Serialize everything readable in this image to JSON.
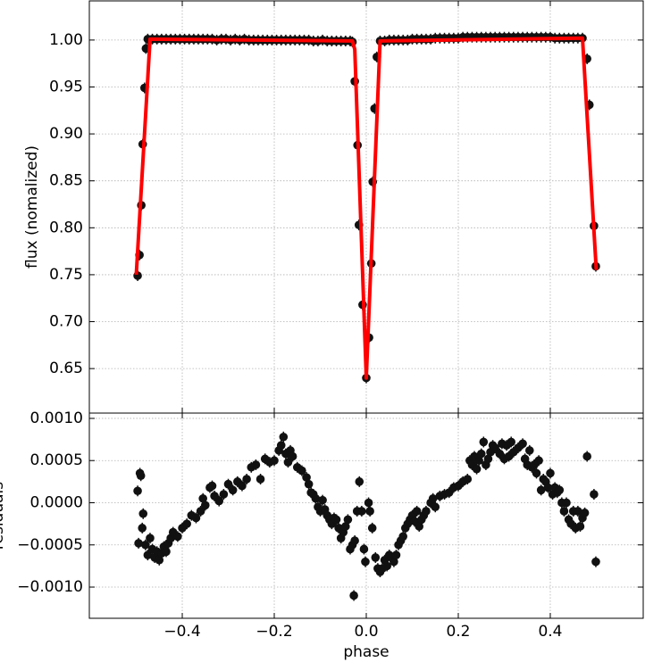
{
  "chart_data": [
    {
      "type": "scatter",
      "ylabel": "flux  (nomalized)",
      "grid": true,
      "color": "#111111",
      "xlim": [
        -0.602,
        0.602
      ],
      "ylim": [
        0.6026,
        1.0417
      ],
      "yticks": [
        0.65,
        {
          "value": 0.7,
          "label": "0.70"
        },
        0.75,
        {
          "value": 0.8,
          "label": "0.80"
        },
        0.85,
        {
          "value": 0.9,
          "label": "0.90"
        },
        0.95,
        {
          "value": 1.0,
          "label": "1.00"
        }
      ],
      "x": [
        -0.497,
        -0.493,
        -0.489,
        -0.486,
        -0.482,
        -0.479,
        -0.475,
        -0.465,
        -0.455,
        -0.445,
        -0.435,
        -0.425,
        -0.415,
        -0.405,
        -0.395,
        -0.385,
        -0.375,
        -0.365,
        -0.355,
        -0.345,
        -0.335,
        -0.325,
        -0.315,
        -0.305,
        -0.295,
        -0.285,
        -0.275,
        -0.265,
        -0.255,
        -0.245,
        -0.235,
        -0.225,
        -0.215,
        -0.205,
        -0.195,
        -0.185,
        -0.175,
        -0.165,
        -0.155,
        -0.145,
        -0.135,
        -0.125,
        -0.115,
        -0.105,
        -0.095,
        -0.085,
        -0.075,
        -0.065,
        -0.055,
        -0.045,
        -0.035,
        -0.03,
        -0.025,
        -0.019,
        -0.016,
        -0.008,
        0.0,
        0.006,
        0.011,
        0.014,
        0.018,
        0.023,
        0.03,
        0.04,
        0.05,
        0.06,
        0.07,
        0.08,
        0.09,
        0.1,
        0.11,
        0.12,
        0.13,
        0.14,
        0.15,
        0.16,
        0.17,
        0.18,
        0.19,
        0.2,
        0.21,
        0.22,
        0.23,
        0.24,
        0.25,
        0.26,
        0.27,
        0.28,
        0.29,
        0.3,
        0.31,
        0.32,
        0.33,
        0.34,
        0.35,
        0.36,
        0.37,
        0.38,
        0.39,
        0.4,
        0.41,
        0.42,
        0.43,
        0.44,
        0.45,
        0.46,
        0.47,
        0.48,
        0.485,
        0.495,
        0.499
      ],
      "values": [
        0.749,
        0.771,
        0.824,
        0.889,
        0.949,
        0.991,
        1.001,
        1.001,
        1.001,
        1.001,
        1.001,
        1.001,
        1.001,
        1.001,
        1.001,
        1.001,
        1.001,
        1.001,
        1.001,
        1.001,
        1.001,
        1.0,
        1.001,
        1.001,
        1.0,
        1.001,
        1.0,
        1.001,
        1.0,
        1.0,
        1.0,
        1.0,
        1.0,
        1.0,
        1.0,
        1.0,
        1.0,
        1.0,
        1.0,
        1.0,
        1.0,
        1.0,
        0.999,
        0.999,
        1.0,
        0.999,
        0.999,
        0.999,
        0.999,
        0.999,
        0.999,
        0.998,
        0.956,
        0.888,
        0.803,
        0.718,
        0.64,
        0.683,
        0.762,
        0.849,
        0.927,
        0.982,
        0.999,
        0.999,
        1.0,
        1.0,
        1.0,
        1.0,
        1.0,
        1.001,
        1.001,
        1.001,
        1.001,
        1.001,
        1.002,
        1.002,
        1.002,
        1.002,
        1.002,
        1.002,
        1.003,
        1.003,
        1.003,
        1.003,
        1.003,
        1.003,
        1.003,
        1.003,
        1.003,
        1.003,
        1.003,
        1.003,
        1.003,
        1.003,
        1.003,
        1.003,
        1.003,
        1.003,
        1.003,
        1.003,
        1.002,
        1.002,
        1.002,
        1.002,
        1.002,
        1.002,
        1.002,
        0.98,
        0.931,
        0.802,
        0.759
      ],
      "model": {
        "color": "#ff0000",
        "x": [
          -0.5,
          -0.47,
          -0.03,
          -0.025,
          0.0,
          0.03,
          0.47,
          0.5
        ],
        "values": [
          0.75,
          1.001,
          0.999,
          0.99,
          0.64,
          0.999,
          1.002,
          0.755
        ]
      }
    },
    {
      "type": "scatter",
      "ylabel": "residuals",
      "xlabel": "phase",
      "grid": true,
      "color": "#111111",
      "xlim": [
        -0.602,
        0.602
      ],
      "ylim": [
        -0.00137,
        0.001063
      ],
      "xticks": [
        {
          "value": -0.4,
          "label": "−0.4"
        },
        {
          "value": -0.2,
          "label": "−0.2"
        },
        {
          "value": 0,
          "label": "0.0"
        },
        0.2,
        0.4
      ],
      "yticks": [
        {
          "value": -0.001,
          "label": "−0.0010"
        },
        {
          "value": -0.0005,
          "label": "−0.0005"
        },
        {
          "value": 0,
          "label": "0.0000"
        },
        {
          "value": 0.0005,
          "label": "0.0005"
        },
        {
          "value": 0.001,
          "label": "0.0010"
        }
      ],
      "x": [
        -0.497,
        -0.495,
        -0.492,
        -0.49,
        -0.487,
        -0.485,
        -0.48,
        -0.475,
        -0.47,
        -0.465,
        -0.46,
        -0.455,
        -0.45,
        -0.445,
        -0.44,
        -0.435,
        -0.43,
        -0.425,
        -0.42,
        -0.41,
        -0.4,
        -0.39,
        -0.38,
        -0.37,
        -0.36,
        -0.355,
        -0.35,
        -0.34,
        -0.335,
        -0.33,
        -0.32,
        -0.31,
        -0.3,
        -0.29,
        -0.28,
        -0.27,
        -0.26,
        -0.25,
        -0.24,
        -0.23,
        -0.22,
        -0.21,
        -0.2,
        -0.19,
        -0.185,
        -0.18,
        -0.175,
        -0.17,
        -0.165,
        -0.16,
        -0.15,
        -0.14,
        -0.13,
        -0.125,
        -0.12,
        -0.115,
        -0.11,
        -0.105,
        -0.1,
        -0.095,
        -0.09,
        -0.085,
        -0.08,
        -0.075,
        -0.07,
        -0.065,
        -0.06,
        -0.055,
        -0.05,
        -0.045,
        -0.04,
        -0.035,
        -0.03,
        -0.027,
        -0.025,
        -0.02,
        -0.015,
        -0.01,
        -0.005,
        -0.002,
        0.005,
        0.008,
        0.013,
        0.02,
        0.025,
        0.03,
        0.035,
        0.04,
        0.045,
        0.05,
        0.055,
        0.06,
        0.065,
        0.07,
        0.075,
        0.08,
        0.085,
        0.09,
        0.095,
        0.1,
        0.105,
        0.11,
        0.115,
        0.12,
        0.125,
        0.13,
        0.14,
        0.145,
        0.15,
        0.16,
        0.17,
        0.18,
        0.19,
        0.2,
        0.21,
        0.22,
        0.225,
        0.23,
        0.235,
        0.24,
        0.245,
        0.25,
        0.255,
        0.26,
        0.265,
        0.27,
        0.275,
        0.28,
        0.29,
        0.295,
        0.3,
        0.305,
        0.31,
        0.315,
        0.32,
        0.33,
        0.34,
        0.345,
        0.35,
        0.355,
        0.36,
        0.365,
        0.37,
        0.375,
        0.38,
        0.385,
        0.39,
        0.395,
        0.4,
        0.405,
        0.41,
        0.415,
        0.42,
        0.425,
        0.43,
        0.435,
        0.44,
        0.445,
        0.45,
        0.455,
        0.46,
        0.465,
        0.47,
        0.475,
        0.48,
        0.495,
        0.499
      ],
      "values": [
        0.00014,
        -0.00048,
        0.00035,
        0.00032,
        -0.0003,
        -0.00013,
        -0.0005,
        -0.00062,
        -0.00042,
        -0.00055,
        -0.00065,
        -0.00058,
        -0.00068,
        -0.0006,
        -0.00052,
        -0.00058,
        -0.00048,
        -0.00042,
        -0.00035,
        -0.0004,
        -0.0003,
        -0.00025,
        -0.00015,
        -0.00018,
        -0.0001,
        5e-05,
        -3e-05,
        0.00018,
        0.0002,
        8e-05,
        2e-05,
        0.0001,
        0.00022,
        0.00015,
        0.00025,
        0.0002,
        0.00028,
        0.00042,
        0.00045,
        0.00028,
        0.00052,
        0.00048,
        0.0005,
        0.00062,
        0.00068,
        0.00078,
        0.00058,
        0.00048,
        0.00062,
        0.00055,
        0.00042,
        0.00038,
        0.0003,
        0.00022,
        0.00012,
        0.0001,
        5e-05,
        -5e-05,
        -0.0001,
        3e-05,
        -8e-05,
        -0.00015,
        -0.0002,
        -0.00025,
        -0.00018,
        -0.0002,
        -0.0003,
        -0.00042,
        -0.00035,
        -0.00028,
        -0.0002,
        -0.00055,
        -0.0005,
        -0.0011,
        -0.00045,
        -0.0001,
        0.00025,
        -0.0001,
        -0.00055,
        -0.0007,
        0.0,
        -0.0001,
        -0.0003,
        -0.00065,
        -0.00078,
        -0.00082,
        -0.00078,
        -0.00068,
        -0.00075,
        -0.00062,
        -0.00065,
        -0.0007,
        -0.00062,
        -0.0005,
        -0.00045,
        -0.0004,
        -0.0003,
        -0.00025,
        -0.0002,
        -0.00015,
        -0.00022,
        -0.0001,
        -0.00028,
        -0.0002,
        -0.00015,
        -0.0001,
        0.0,
        5e-05,
        -5e-05,
        8e-05,
        0.0001,
        0.00012,
        0.00018,
        0.0002,
        0.00025,
        0.00028,
        0.0005,
        0.00045,
        0.00055,
        0.0004,
        0.0005,
        0.00058,
        0.00072,
        0.00045,
        0.00052,
        0.0006,
        0.00068,
        0.00065,
        0.00058,
        0.0007,
        0.00052,
        0.00068,
        0.00055,
        0.00072,
        0.0006,
        0.00065,
        0.0007,
        0.00052,
        0.00045,
        0.00062,
        0.00042,
        0.00045,
        0.00035,
        0.0005,
        0.00015,
        0.00028,
        0.00025,
        0.00018,
        0.00035,
        0.0001,
        0.00018,
        0.00012,
        0.00015,
        0.0,
        -0.0001,
        0.0,
        -0.0002,
        -0.00025,
        -0.0001,
        -0.0003,
        -0.0001,
        -0.00028,
        -0.00018,
        -0.00012,
        0.00055,
        0.0001,
        -0.0007
      ]
    }
  ]
}
